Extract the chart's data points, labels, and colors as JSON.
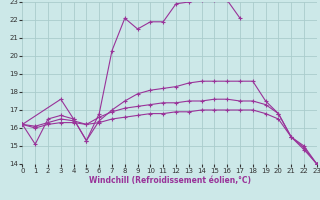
{
  "bg_color": "#cce8e8",
  "grid_color": "#aacccc",
  "line_color": "#993399",
  "xlabel": "Windchill (Refroidissement éolien,°C)",
  "xlim": [
    0,
    23
  ],
  "ylim": [
    14,
    23
  ],
  "xticks": [
    0,
    1,
    2,
    3,
    4,
    5,
    6,
    7,
    8,
    9,
    10,
    11,
    12,
    13,
    14,
    15,
    16,
    17,
    18,
    19,
    20,
    21,
    22,
    23
  ],
  "yticks": [
    14,
    15,
    16,
    17,
    18,
    19,
    20,
    21,
    22,
    23
  ],
  "series": [
    {
      "x": [
        0,
        1,
        2,
        3,
        4,
        5,
        6,
        7,
        8,
        9,
        10,
        11,
        12,
        13,
        14,
        15,
        16,
        17
      ],
      "y": [
        16.2,
        15.1,
        16.5,
        16.7,
        16.5,
        15.3,
        16.8,
        20.3,
        22.1,
        21.5,
        21.9,
        21.9,
        22.9,
        23.0,
        23.1,
        23.1,
        23.1,
        22.1
      ]
    },
    {
      "x": [
        0,
        3,
        4,
        5,
        6,
        7,
        8,
        9,
        10,
        11,
        12,
        13,
        14,
        15,
        16,
        17,
        18,
        19,
        20,
        21,
        22,
        23
      ],
      "y": [
        16.2,
        17.6,
        16.5,
        15.3,
        16.4,
        17.0,
        17.5,
        17.9,
        18.1,
        18.2,
        18.3,
        18.5,
        18.6,
        18.6,
        18.6,
        18.6,
        18.6,
        17.5,
        16.8,
        15.5,
        14.9,
        14.0
      ]
    },
    {
      "x": [
        0,
        1,
        2,
        3,
        4,
        5,
        6,
        7,
        8,
        9,
        10,
        11,
        12,
        13,
        14,
        15,
        16,
        17,
        18,
        19,
        20,
        21,
        22,
        23
      ],
      "y": [
        16.2,
        16.1,
        16.3,
        16.5,
        16.4,
        16.2,
        16.6,
        16.9,
        17.1,
        17.2,
        17.3,
        17.4,
        17.4,
        17.5,
        17.5,
        17.6,
        17.6,
        17.5,
        17.5,
        17.3,
        16.8,
        15.5,
        15.0,
        14.0
      ]
    },
    {
      "x": [
        0,
        1,
        2,
        3,
        4,
        5,
        6,
        7,
        8,
        9,
        10,
        11,
        12,
        13,
        14,
        15,
        16,
        17,
        18,
        19,
        20,
        21,
        22,
        23
      ],
      "y": [
        16.2,
        16.0,
        16.2,
        16.3,
        16.3,
        16.2,
        16.3,
        16.5,
        16.6,
        16.7,
        16.8,
        16.8,
        16.9,
        16.9,
        17.0,
        17.0,
        17.0,
        17.0,
        17.0,
        16.8,
        16.5,
        15.5,
        14.8,
        14.0
      ]
    }
  ]
}
